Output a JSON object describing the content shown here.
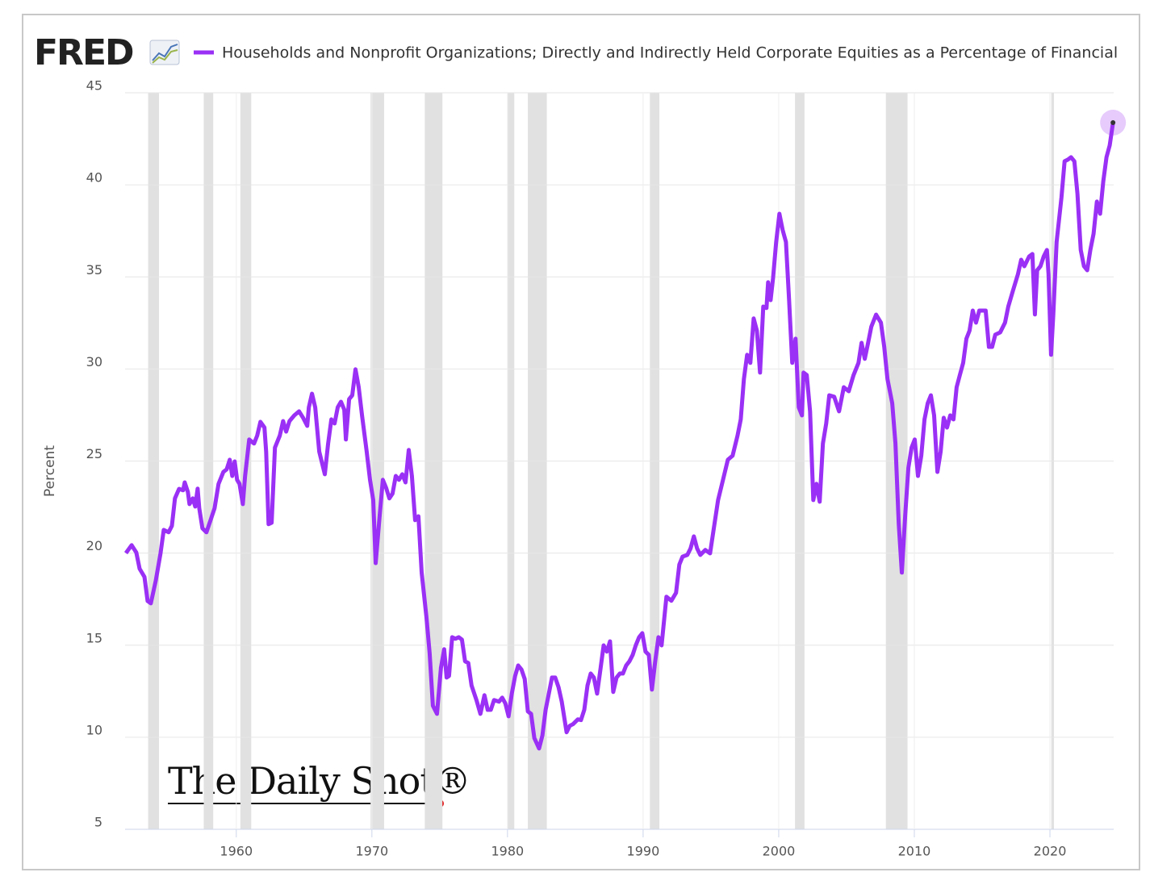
{
  "chart_data": {
    "type": "line",
    "logo": "FRED",
    "watermark": "The Daily Shot®",
    "y_label": "Percent",
    "xlim": [
      1951.8,
      2024.7
    ],
    "xticks": [
      1960,
      1970,
      1980,
      1990,
      2000,
      2010,
      2020
    ],
    "ylim": [
      5,
      45
    ],
    "yticks": [
      5,
      10,
      15,
      20,
      25,
      30,
      35,
      40,
      45
    ],
    "grid": true,
    "recessions": [
      [
        1953.5,
        1954.3
      ],
      [
        1957.6,
        1958.3
      ],
      [
        1960.3,
        1961.1
      ],
      [
        1969.9,
        1970.9
      ],
      [
        1973.9,
        1975.2
      ],
      [
        1980.0,
        1980.5
      ],
      [
        1981.5,
        1982.9
      ],
      [
        1990.5,
        1991.2
      ],
      [
        2001.2,
        2001.9
      ],
      [
        2007.9,
        2009.5
      ],
      [
        2020.1,
        2020.3
      ]
    ],
    "recession_color": "#e1e1e1",
    "x": [
      1951.86,
      1952.28,
      1952.63,
      1952.87,
      1953.23,
      1953.46,
      1953.7,
      1954.06,
      1954.41,
      1954.65,
      1955.01,
      1955.25,
      1955.48,
      1955.78,
      1956.08,
      1956.2,
      1956.43,
      1956.55,
      1956.79,
      1956.97,
      1957.15,
      1957.27,
      1957.5,
      1957.8,
      1958.1,
      1958.4,
      1958.69,
      1959.05,
      1959.29,
      1959.52,
      1959.7,
      1959.88,
      1960.06,
      1960.24,
      1960.48,
      1960.65,
      1960.95,
      1961.31,
      1961.54,
      1961.78,
      1962.08,
      1962.2,
      1962.38,
      1962.61,
      1962.85,
      1963.21,
      1963.45,
      1963.68,
      1963.92,
      1964.28,
      1964.63,
      1964.93,
      1965.23,
      1965.35,
      1965.58,
      1965.82,
      1966.12,
      1966.53,
      1966.77,
      1967.01,
      1967.25,
      1967.48,
      1967.72,
      1967.96,
      1968.08,
      1968.32,
      1968.55,
      1968.79,
      1969.03,
      1969.27,
      1969.62,
      1969.86,
      1970.1,
      1970.28,
      1970.57,
      1970.81,
      1971.05,
      1971.29,
      1971.52,
      1971.76,
      1972.0,
      1972.24,
      1972.48,
      1972.72,
      1972.95,
      1973.19,
      1973.43,
      1973.67,
      1974.02,
      1974.26,
      1974.5,
      1974.8,
      1975.09,
      1975.33,
      1975.51,
      1975.69,
      1975.92,
      1976.16,
      1976.4,
      1976.64,
      1976.87,
      1977.11,
      1977.35,
      1977.71,
      1978.0,
      1978.3,
      1978.54,
      1978.77,
      1979.01,
      1979.37,
      1979.61,
      1979.84,
      1980.08,
      1980.32,
      1980.56,
      1980.79,
      1981.03,
      1981.27,
      1981.5,
      1981.74,
      1981.98,
      1982.33,
      1982.57,
      1982.81,
      1983.05,
      1983.28,
      1983.52,
      1983.76,
      1984.0,
      1984.36,
      1984.59,
      1984.83,
      1985.19,
      1985.42,
      1985.66,
      1985.9,
      1986.14,
      1986.37,
      1986.61,
      1986.85,
      1987.09,
      1987.33,
      1987.56,
      1987.8,
      1988.04,
      1988.28,
      1988.51,
      1988.75,
      1988.99,
      1989.23,
      1989.46,
      1989.7,
      1989.94,
      1990.18,
      1990.42,
      1990.65,
      1990.89,
      1991.13,
      1991.36,
      1991.72,
      1992.08,
      1992.43,
      1992.67,
      1992.91,
      1993.26,
      1993.5,
      1993.74,
      1993.98,
      1994.22,
      1994.58,
      1994.94,
      1995.17,
      1995.53,
      1995.89,
      1996.25,
      1996.6,
      1996.96,
      1997.2,
      1997.43,
      1997.67,
      1997.91,
      1998.15,
      1998.39,
      1998.62,
      1998.86,
      1999.1,
      1999.22,
      1999.4,
      1999.58,
      1999.81,
      2000.05,
      2000.29,
      2000.53,
      2000.76,
      2001.0,
      2001.24,
      2001.48,
      2001.71,
      2001.83,
      2002.07,
      2002.31,
      2002.55,
      2002.78,
      2003.02,
      2003.26,
      2003.5,
      2003.73,
      2004.09,
      2004.45,
      2004.8,
      2005.16,
      2005.52,
      2005.88,
      2006.11,
      2006.35,
      2006.59,
      2006.83,
      2007.18,
      2007.54,
      2007.78,
      2008.02,
      2008.37,
      2008.61,
      2008.85,
      2009.08,
      2009.32,
      2009.56,
      2009.8,
      2010.03,
      2010.27,
      2010.51,
      2010.75,
      2010.99,
      2011.22,
      2011.46,
      2011.7,
      2011.94,
      2012.17,
      2012.41,
      2012.65,
      2012.89,
      2013.12,
      2013.36,
      2013.6,
      2013.84,
      2014.07,
      2014.31,
      2014.55,
      2014.79,
      2015.02,
      2015.26,
      2015.5,
      2015.74,
      2015.97,
      2016.33,
      2016.69,
      2016.93,
      2017.28,
      2017.64,
      2017.88,
      2018.11,
      2018.47,
      2018.71,
      2018.89,
      2019.06,
      2019.3,
      2019.54,
      2019.78,
      2019.9,
      2020.08,
      2020.25,
      2020.49,
      2020.85,
      2021.08,
      2021.32,
      2021.56,
      2021.8,
      2022.03,
      2022.27,
      2022.51,
      2022.75,
      2022.98,
      2023.22,
      2023.46,
      2023.7,
      2023.93,
      2024.17,
      2024.41,
      2024.65
    ],
    "series": [
      {
        "name": "Households and Nonprofit Organizations; Directly and Indirectly Held Corporate Equities as a Percentage of Financial",
        "color": "#9a30f5",
        "values": [
          20.0,
          20.43,
          20.03,
          19.15,
          18.71,
          17.4,
          17.27,
          18.5,
          19.99,
          21.26,
          21.13,
          21.48,
          22.97,
          23.49,
          23.41,
          23.84,
          23.32,
          22.66,
          22.97,
          22.53,
          23.5,
          22.44,
          21.35,
          21.13,
          21.79,
          22.44,
          23.76,
          24.41,
          24.55,
          25.07,
          24.19,
          24.98,
          23.98,
          23.76,
          22.66,
          24.19,
          26.17,
          25.95,
          26.38,
          27.13,
          26.82,
          25.51,
          21.57,
          21.65,
          25.73,
          26.38,
          27.17,
          26.6,
          27.17,
          27.48,
          27.7,
          27.35,
          26.91,
          27.92,
          28.66,
          27.92,
          25.51,
          24.28,
          25.95,
          27.26,
          27.04,
          27.92,
          28.22,
          27.79,
          26.17,
          28.36,
          28.57,
          29.98,
          29.01,
          27.48,
          25.51,
          23.98,
          22.88,
          19.46,
          22.0,
          23.98,
          23.54,
          22.97,
          23.23,
          24.19,
          23.98,
          24.28,
          23.84,
          25.6,
          24.19,
          21.79,
          22.0,
          18.94,
          16.53,
          14.56,
          11.71,
          11.27,
          13.77,
          14.78,
          13.24,
          13.33,
          15.43,
          15.35,
          15.43,
          15.3,
          14.12,
          14.03,
          12.81,
          12.02,
          11.27,
          12.28,
          11.49,
          11.49,
          12.02,
          11.93,
          12.15,
          11.84,
          11.14,
          12.37,
          13.33,
          13.9,
          13.68,
          13.16,
          11.4,
          11.27,
          9.96,
          9.39,
          10.09,
          11.49,
          12.37,
          13.24,
          13.24,
          12.72,
          11.93,
          10.27,
          10.62,
          10.71,
          10.97,
          10.93,
          11.49,
          12.81,
          13.46,
          13.24,
          12.37,
          13.68,
          14.99,
          14.65,
          15.21,
          12.46,
          13.24,
          13.46,
          13.46,
          13.9,
          14.12,
          14.47,
          14.99,
          15.43,
          15.65,
          14.65,
          14.47,
          12.59,
          14.12,
          15.43,
          14.99,
          17.63,
          17.41,
          17.84,
          19.38,
          19.81,
          19.9,
          20.25,
          20.91,
          20.25,
          19.9,
          20.17,
          19.99,
          21.13,
          22.88,
          23.98,
          25.07,
          25.29,
          26.38,
          27.26,
          29.45,
          30.77,
          30.33,
          32.74,
          32.08,
          29.8,
          33.39,
          33.31,
          34.71,
          33.74,
          34.92,
          36.9,
          38.43,
          37.55,
          36.9,
          33.83,
          30.33,
          31.64,
          27.92,
          27.48,
          29.8,
          29.67,
          27.7,
          22.88,
          23.76,
          22.79,
          25.95,
          27.04,
          28.57,
          28.49,
          27.7,
          29.01,
          28.79,
          29.67,
          30.33,
          31.42,
          30.55,
          31.42,
          32.3,
          32.95,
          32.52,
          31.2,
          29.45,
          28.14,
          25.95,
          21.57,
          18.94,
          22.0,
          24.63,
          25.73,
          26.17,
          24.19,
          25.29,
          27.26,
          28.14,
          28.57,
          27.48,
          24.41,
          25.51,
          27.35,
          26.82,
          27.48,
          27.26,
          29.01,
          29.67,
          30.33,
          31.64,
          32.08,
          33.17,
          32.52,
          33.17,
          33.17,
          33.17,
          31.2,
          31.2,
          31.86,
          31.99,
          32.52,
          33.39,
          34.27,
          35.15,
          35.93,
          35.58,
          36.11,
          36.24,
          32.96,
          35.36,
          35.58,
          36.11,
          36.46,
          35.15,
          30.77,
          32.96,
          36.9,
          39.31,
          41.28,
          41.37,
          41.5,
          41.28,
          39.53,
          36.46,
          35.58,
          35.36,
          36.46,
          37.34,
          39.09,
          38.43,
          40.18,
          41.5,
          42.15,
          43.38
        ]
      }
    ]
  }
}
